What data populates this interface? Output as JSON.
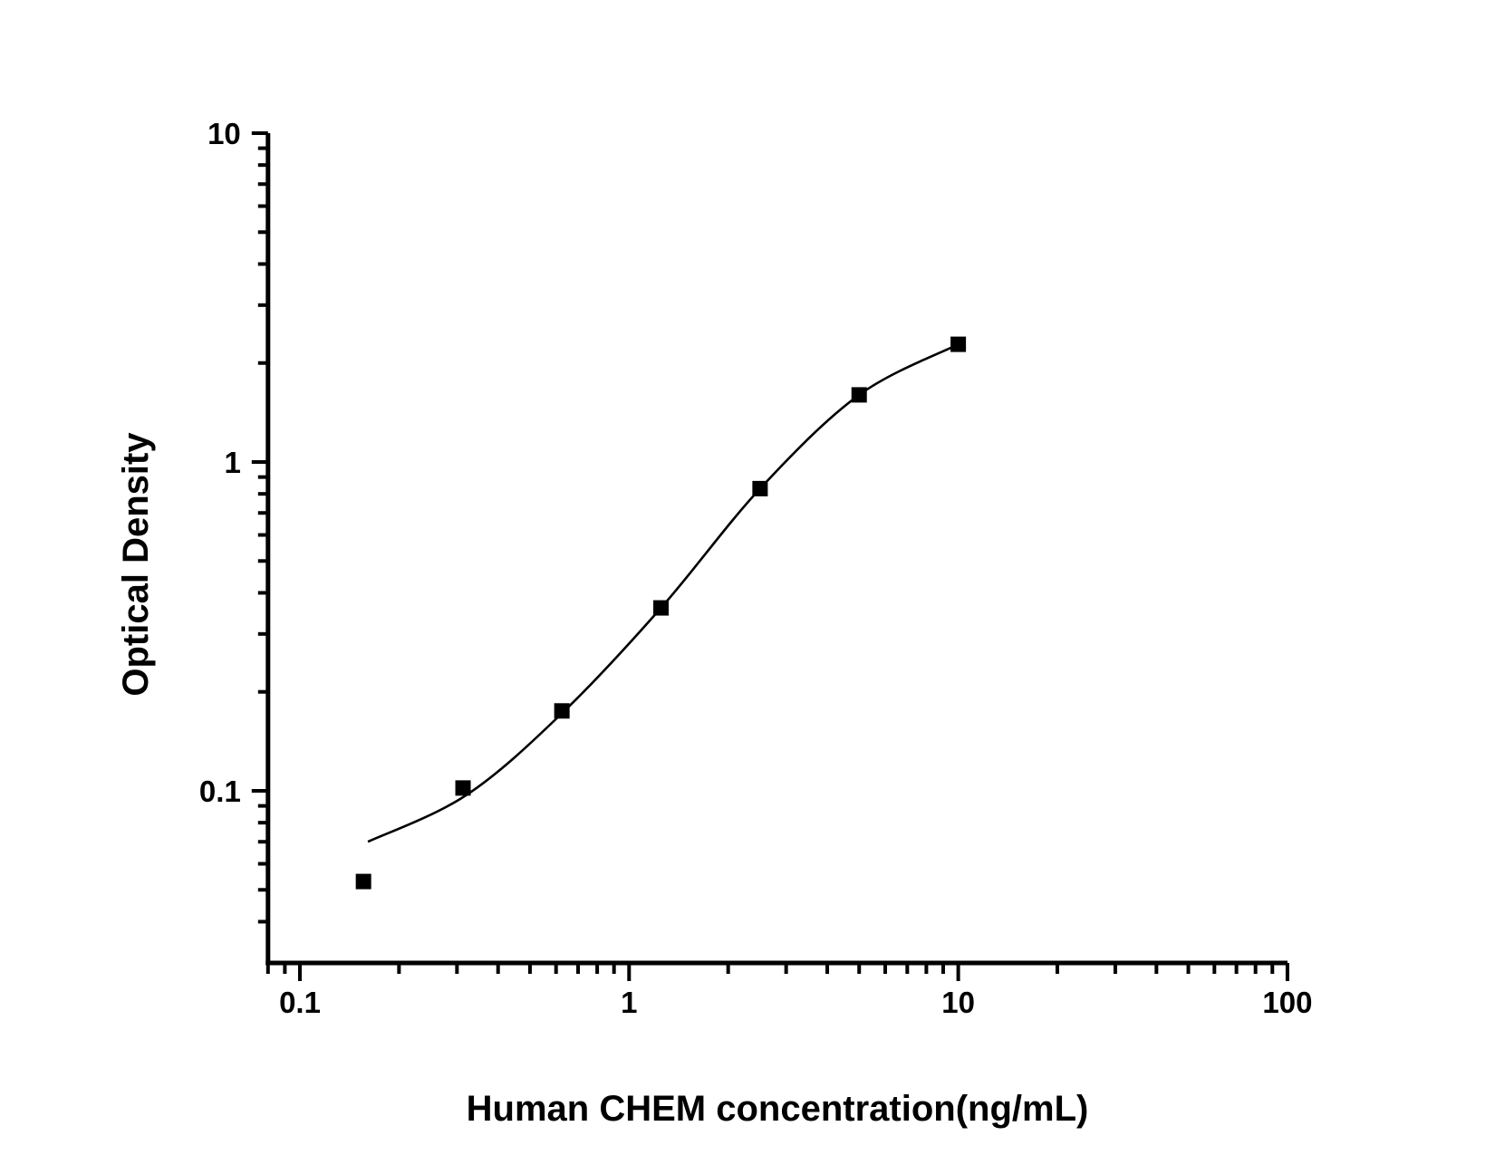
{
  "page": {
    "background": "#ffffff",
    "foreground": "#000000"
  },
  "chart_data": {
    "type": "scatter",
    "title": "",
    "xlabel": "Human CHEM concentration(ng/mL)",
    "ylabel": "Optical Density",
    "x_scale": "log",
    "y_scale": "log",
    "x_range": [
      0.08,
      100
    ],
    "y_range": [
      0.03,
      10
    ],
    "grid": false,
    "legend": "none",
    "x_ticks_major": [
      {
        "value": 0.1,
        "label": "0.1"
      },
      {
        "value": 1,
        "label": "1"
      },
      {
        "value": 10,
        "label": "10"
      },
      {
        "value": 100,
        "label": "100"
      }
    ],
    "x_ticks_minor": [
      0.08,
      0.09,
      0.2,
      0.3,
      0.4,
      0.5,
      0.6,
      0.7,
      0.8,
      0.9,
      2,
      3,
      4,
      5,
      6,
      7,
      8,
      9,
      20,
      30,
      40,
      50,
      60,
      70,
      80,
      90
    ],
    "y_ticks_major": [
      {
        "value": 10,
        "label": "10"
      },
      {
        "value": 1,
        "label": "1"
      },
      {
        "value": 0.1,
        "label": "0.1"
      }
    ],
    "y_ticks_minor": [
      9,
      8,
      7,
      6,
      5,
      4,
      3,
      2,
      0.9,
      0.8,
      0.7,
      0.6,
      0.5,
      0.4,
      0.3,
      0.2,
      0.09,
      0.08,
      0.07,
      0.06,
      0.05,
      0.04
    ],
    "series": [
      {
        "name": "standard-points",
        "marker": "filled-square",
        "color": "#000000",
        "points": [
          {
            "x": 0.156,
            "y": 0.053
          },
          {
            "x": 0.313,
            "y": 0.102
          },
          {
            "x": 0.625,
            "y": 0.175
          },
          {
            "x": 1.25,
            "y": 0.36
          },
          {
            "x": 2.5,
            "y": 0.83
          },
          {
            "x": 5,
            "y": 1.6
          },
          {
            "x": 10,
            "y": 2.28
          }
        ]
      }
    ],
    "fit_curve": {
      "name": "4pl-fit-line",
      "color": "#000000",
      "points": [
        {
          "x": 0.161,
          "y": 0.07
        },
        {
          "x": 0.32,
          "y": 0.097
        },
        {
          "x": 0.625,
          "y": 0.172
        },
        {
          "x": 1.25,
          "y": 0.36
        },
        {
          "x": 2.5,
          "y": 0.83
        },
        {
          "x": 5,
          "y": 1.6
        },
        {
          "x": 10,
          "y": 2.28
        }
      ]
    }
  }
}
